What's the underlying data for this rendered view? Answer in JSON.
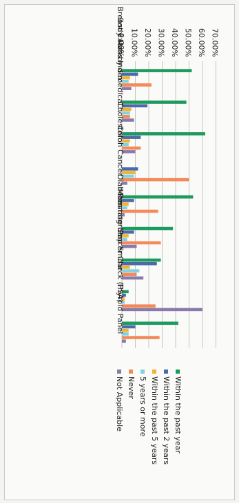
{
  "chart_data": {
    "type": "bar",
    "orientation": "horizontal",
    "rendered_rotation": "90deg clockwise",
    "categories": [
      "Body Mass Index",
      "Breast Exam by a medical…",
      "Cholesterol",
      "Colon Cancer",
      "Diabetes",
      "Mammogram",
      "Pap Smear",
      "Prostate Cancer Check (PSA)",
      "Thyroid Panel"
    ],
    "tick_labels": [
      "0.00%",
      "10.00%",
      "20.00%",
      "30.00%",
      "40.00%",
      "50.00%",
      "60.00%",
      "70.00%"
    ],
    "ylim": [
      0,
      70
    ],
    "grid": true,
    "legend_position": "bottom",
    "series": [
      {
        "name": "Within the past year",
        "color": "#1e9a5f",
        "values": [
          52,
          48,
          62,
          0,
          53,
          38,
          29,
          5,
          42
        ]
      },
      {
        "name": "Within the past 2 years",
        "color": "#4a6aa8",
        "values": [
          12,
          19,
          14,
          12,
          9,
          9,
          26,
          3,
          10
        ]
      },
      {
        "name": "Within the past 5 years",
        "color": "#f2b233",
        "values": [
          6,
          7,
          6,
          10,
          5,
          5,
          6,
          2,
          5
        ]
      },
      {
        "name": "5 years or more",
        "color": "#7fd3e3",
        "values": [
          5,
          6,
          5,
          9,
          4,
          4,
          13,
          2,
          5
        ]
      },
      {
        "name": "Never",
        "color": "#f28a5a",
        "values": [
          22,
          6,
          14,
          50,
          27,
          29,
          11,
          25,
          28
        ]
      },
      {
        "name": "Not Applicable",
        "color": "#8a7aa8",
        "values": [
          7,
          9,
          10,
          4,
          2,
          11,
          16,
          60,
          3
        ]
      }
    ]
  }
}
